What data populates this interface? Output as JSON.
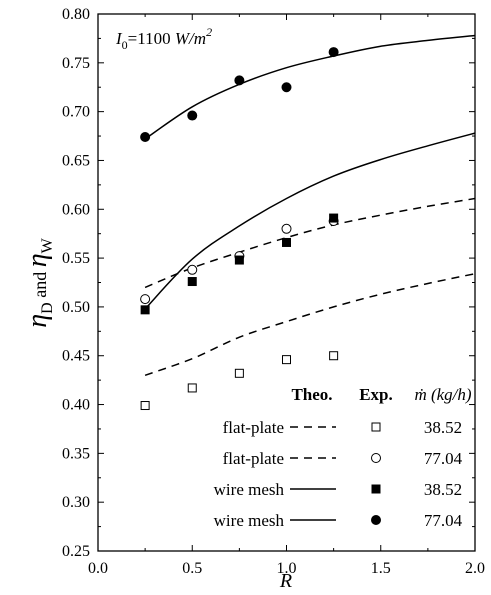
{
  "chart_data": {
    "type": "scatter",
    "xlabel": "R",
    "ylabel": "η_D and η_W",
    "xlim": [
      0.0,
      2.0
    ],
    "ylim": [
      0.25,
      0.8
    ],
    "x_ticks": [
      "0.0",
      "0.5",
      "1.0",
      "1.5",
      "2.0"
    ],
    "y_ticks": [
      "0.25",
      "0.30",
      "0.35",
      "0.40",
      "0.45",
      "0.50",
      "0.55",
      "0.60",
      "0.65",
      "0.70",
      "0.75",
      "0.80"
    ],
    "annotation": "I0=1100 W/m2",
    "legend": {
      "placement": "bottom-right",
      "header_theo": "Theo.",
      "header_exp": "Exp.",
      "header_mdot": "ṁ (kg/h)",
      "entries": [
        {
          "label": "flat-plate",
          "line": "dashed",
          "marker": "open-square",
          "value": "38.52"
        },
        {
          "label": "flat-plate",
          "line": "dashed",
          "marker": "open-circle",
          "value": "77.04"
        },
        {
          "label": "wire mesh",
          "line": "solid",
          "marker": "filled-square",
          "value": "38.52"
        },
        {
          "label": "wire mesh",
          "line": "solid",
          "marker": "filled-circle",
          "value": "77.04"
        }
      ]
    },
    "series": [
      {
        "type": "scatter",
        "marker": "open-square",
        "x": [
          0.25,
          0.5,
          0.75,
          1.0,
          1.25
        ],
        "y": [
          0.399,
          0.417,
          0.432,
          0.446,
          0.45
        ]
      },
      {
        "type": "scatter",
        "marker": "open-circle",
        "x": [
          0.25,
          0.5,
          0.75,
          1.0,
          1.25
        ],
        "y": [
          0.508,
          0.538,
          0.552,
          0.58,
          0.588
        ]
      },
      {
        "type": "scatter",
        "marker": "filled-square",
        "x": [
          0.25,
          0.5,
          0.75,
          1.0,
          1.25
        ],
        "y": [
          0.497,
          0.526,
          0.548,
          0.566,
          0.591
        ]
      },
      {
        "type": "scatter",
        "marker": "filled-circle",
        "x": [
          0.25,
          0.5,
          0.75,
          1.0,
          1.25
        ],
        "y": [
          0.674,
          0.696,
          0.732,
          0.725,
          0.761
        ]
      },
      {
        "type": "line",
        "style": "dashed",
        "x": [
          0.25,
          0.5,
          0.75,
          1.0,
          1.25,
          1.5,
          1.75,
          2.0
        ],
        "y": [
          0.43,
          0.447,
          0.469,
          0.485,
          0.5,
          0.513,
          0.524,
          0.534
        ]
      },
      {
        "type": "line",
        "style": "dashed",
        "x": [
          0.25,
          0.5,
          0.75,
          1.0,
          1.25,
          1.5,
          1.75,
          2.0
        ],
        "y": [
          0.52,
          0.54,
          0.556,
          0.571,
          0.584,
          0.594,
          0.603,
          0.611
        ]
      },
      {
        "type": "line",
        "style": "solid",
        "x": [
          0.25,
          0.5,
          0.75,
          1.0,
          1.25,
          1.5,
          1.75,
          2.0
        ],
        "y": [
          0.498,
          0.549,
          0.583,
          0.611,
          0.634,
          0.651,
          0.665,
          0.678
        ]
      },
      {
        "type": "line",
        "style": "solid",
        "x": [
          0.25,
          0.5,
          0.75,
          1.0,
          1.25,
          1.5,
          1.75,
          2.0
        ],
        "y": [
          0.672,
          0.705,
          0.728,
          0.745,
          0.757,
          0.767,
          0.773,
          0.778
        ]
      }
    ]
  }
}
